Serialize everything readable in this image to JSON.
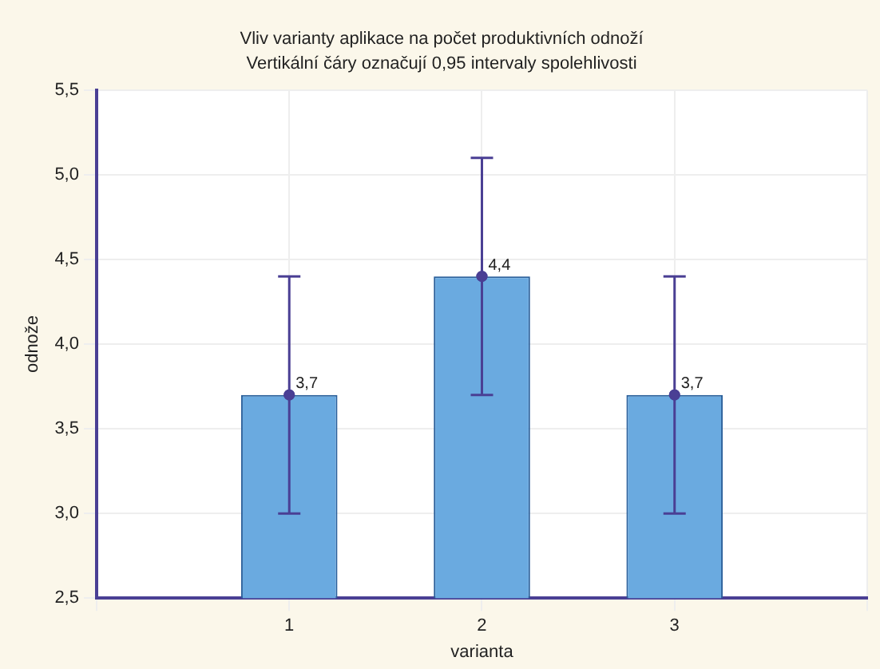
{
  "chart_data": {
    "type": "bar",
    "title": "Vliv varianty aplikace na počet produktivních odnoží",
    "subtitle": "Vertikální čáry označují 0,95 intervaly spolehlivosti",
    "xlabel": "varianta",
    "ylabel": "odnože",
    "categories": [
      null,
      "1",
      "2",
      "3",
      null
    ],
    "series": [
      {
        "color": "#6aaae0",
        "values": [
          null,
          3.7,
          4.4,
          3.7,
          null
        ],
        "errors": [
          null,
          0.7,
          0.7,
          0.7,
          null
        ],
        "value_labels": [
          null,
          "3,7",
          "4,4",
          "3,7",
          null
        ]
      },
      {
        "type": "scatter",
        "color": "#4a3f94",
        "x": [
          "1",
          "2",
          "3"
        ],
        "values": [
          3.7,
          4.4,
          3.7
        ]
      }
    ],
    "ylim": [
      2.5,
      5.5
    ],
    "yticks": [
      {
        "value": 2.5,
        "label": "2,5"
      },
      {
        "value": 3.0,
        "label": "3,0"
      },
      {
        "value": 3.5,
        "label": "3,5"
      },
      {
        "value": 4.0,
        "label": "4,0"
      },
      {
        "value": 4.5,
        "label": "4,5"
      },
      {
        "value": 5.0,
        "label": "5,0"
      },
      {
        "value": 5.5,
        "label": "5,5"
      }
    ],
    "grid": true,
    "legend": false,
    "marker": "circle"
  }
}
